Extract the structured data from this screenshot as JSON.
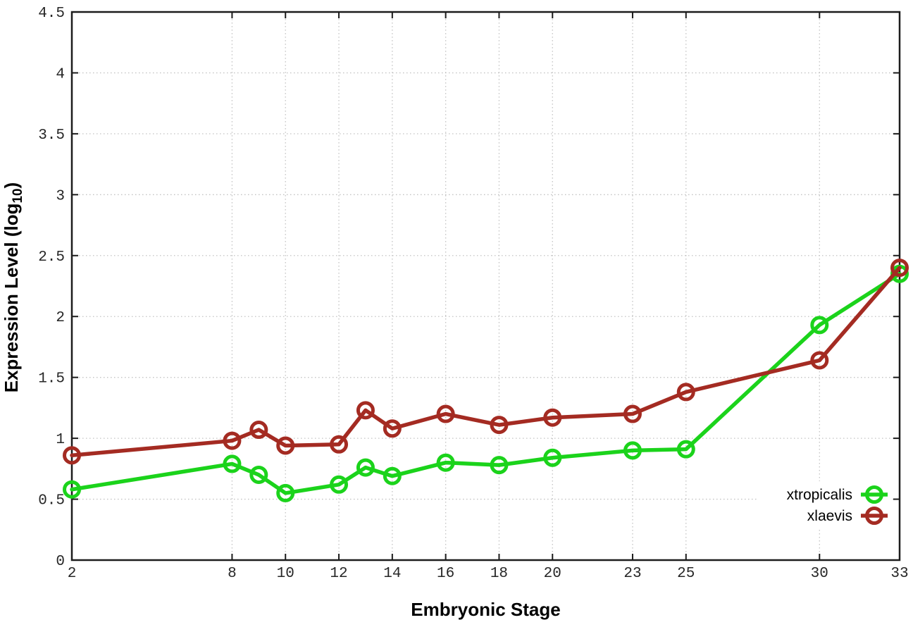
{
  "chart": {
    "xlabel": "Embryonic Stage",
    "ylabel_main": "Expression Level (log",
    "ylabel_sub": "10",
    "ylabel_end": ")"
  },
  "chart_data": {
    "type": "line",
    "title": "",
    "xlabel": "Embryonic Stage",
    "ylabel": "Expression Level (log10)",
    "x": [
      2,
      8,
      9,
      10,
      12,
      13,
      14,
      16,
      18,
      20,
      23,
      25,
      30,
      33
    ],
    "series": [
      {
        "name": "xtropicalis",
        "color": "#1bd31b",
        "values": [
          0.58,
          0.79,
          0.7,
          0.55,
          0.62,
          0.76,
          0.69,
          0.8,
          0.78,
          0.84,
          0.9,
          0.91,
          1.93,
          2.35
        ]
      },
      {
        "name": "xlaevis",
        "color": "#a42b22",
        "values": [
          0.86,
          0.98,
          1.07,
          0.94,
          0.95,
          1.23,
          1.08,
          1.2,
          1.11,
          1.17,
          1.2,
          1.38,
          1.64,
          2.4
        ]
      }
    ],
    "xlim": [
      2,
      33
    ],
    "ylim": [
      0,
      4.5
    ],
    "xticks": [
      2,
      8,
      10,
      12,
      14,
      16,
      18,
      20,
      23,
      25,
      30,
      33
    ],
    "yticks": [
      0,
      0.5,
      1,
      1.5,
      2,
      2.5,
      3,
      3.5,
      4,
      4.5
    ],
    "grid": true,
    "legend_position": "bottom-right"
  },
  "style": {
    "background": "#ffffff",
    "border_color": "#1c1c1c",
    "grid_color": "#c3c3c3",
    "tick_label_color": "#262626",
    "legend_text_color": "#000000"
  }
}
